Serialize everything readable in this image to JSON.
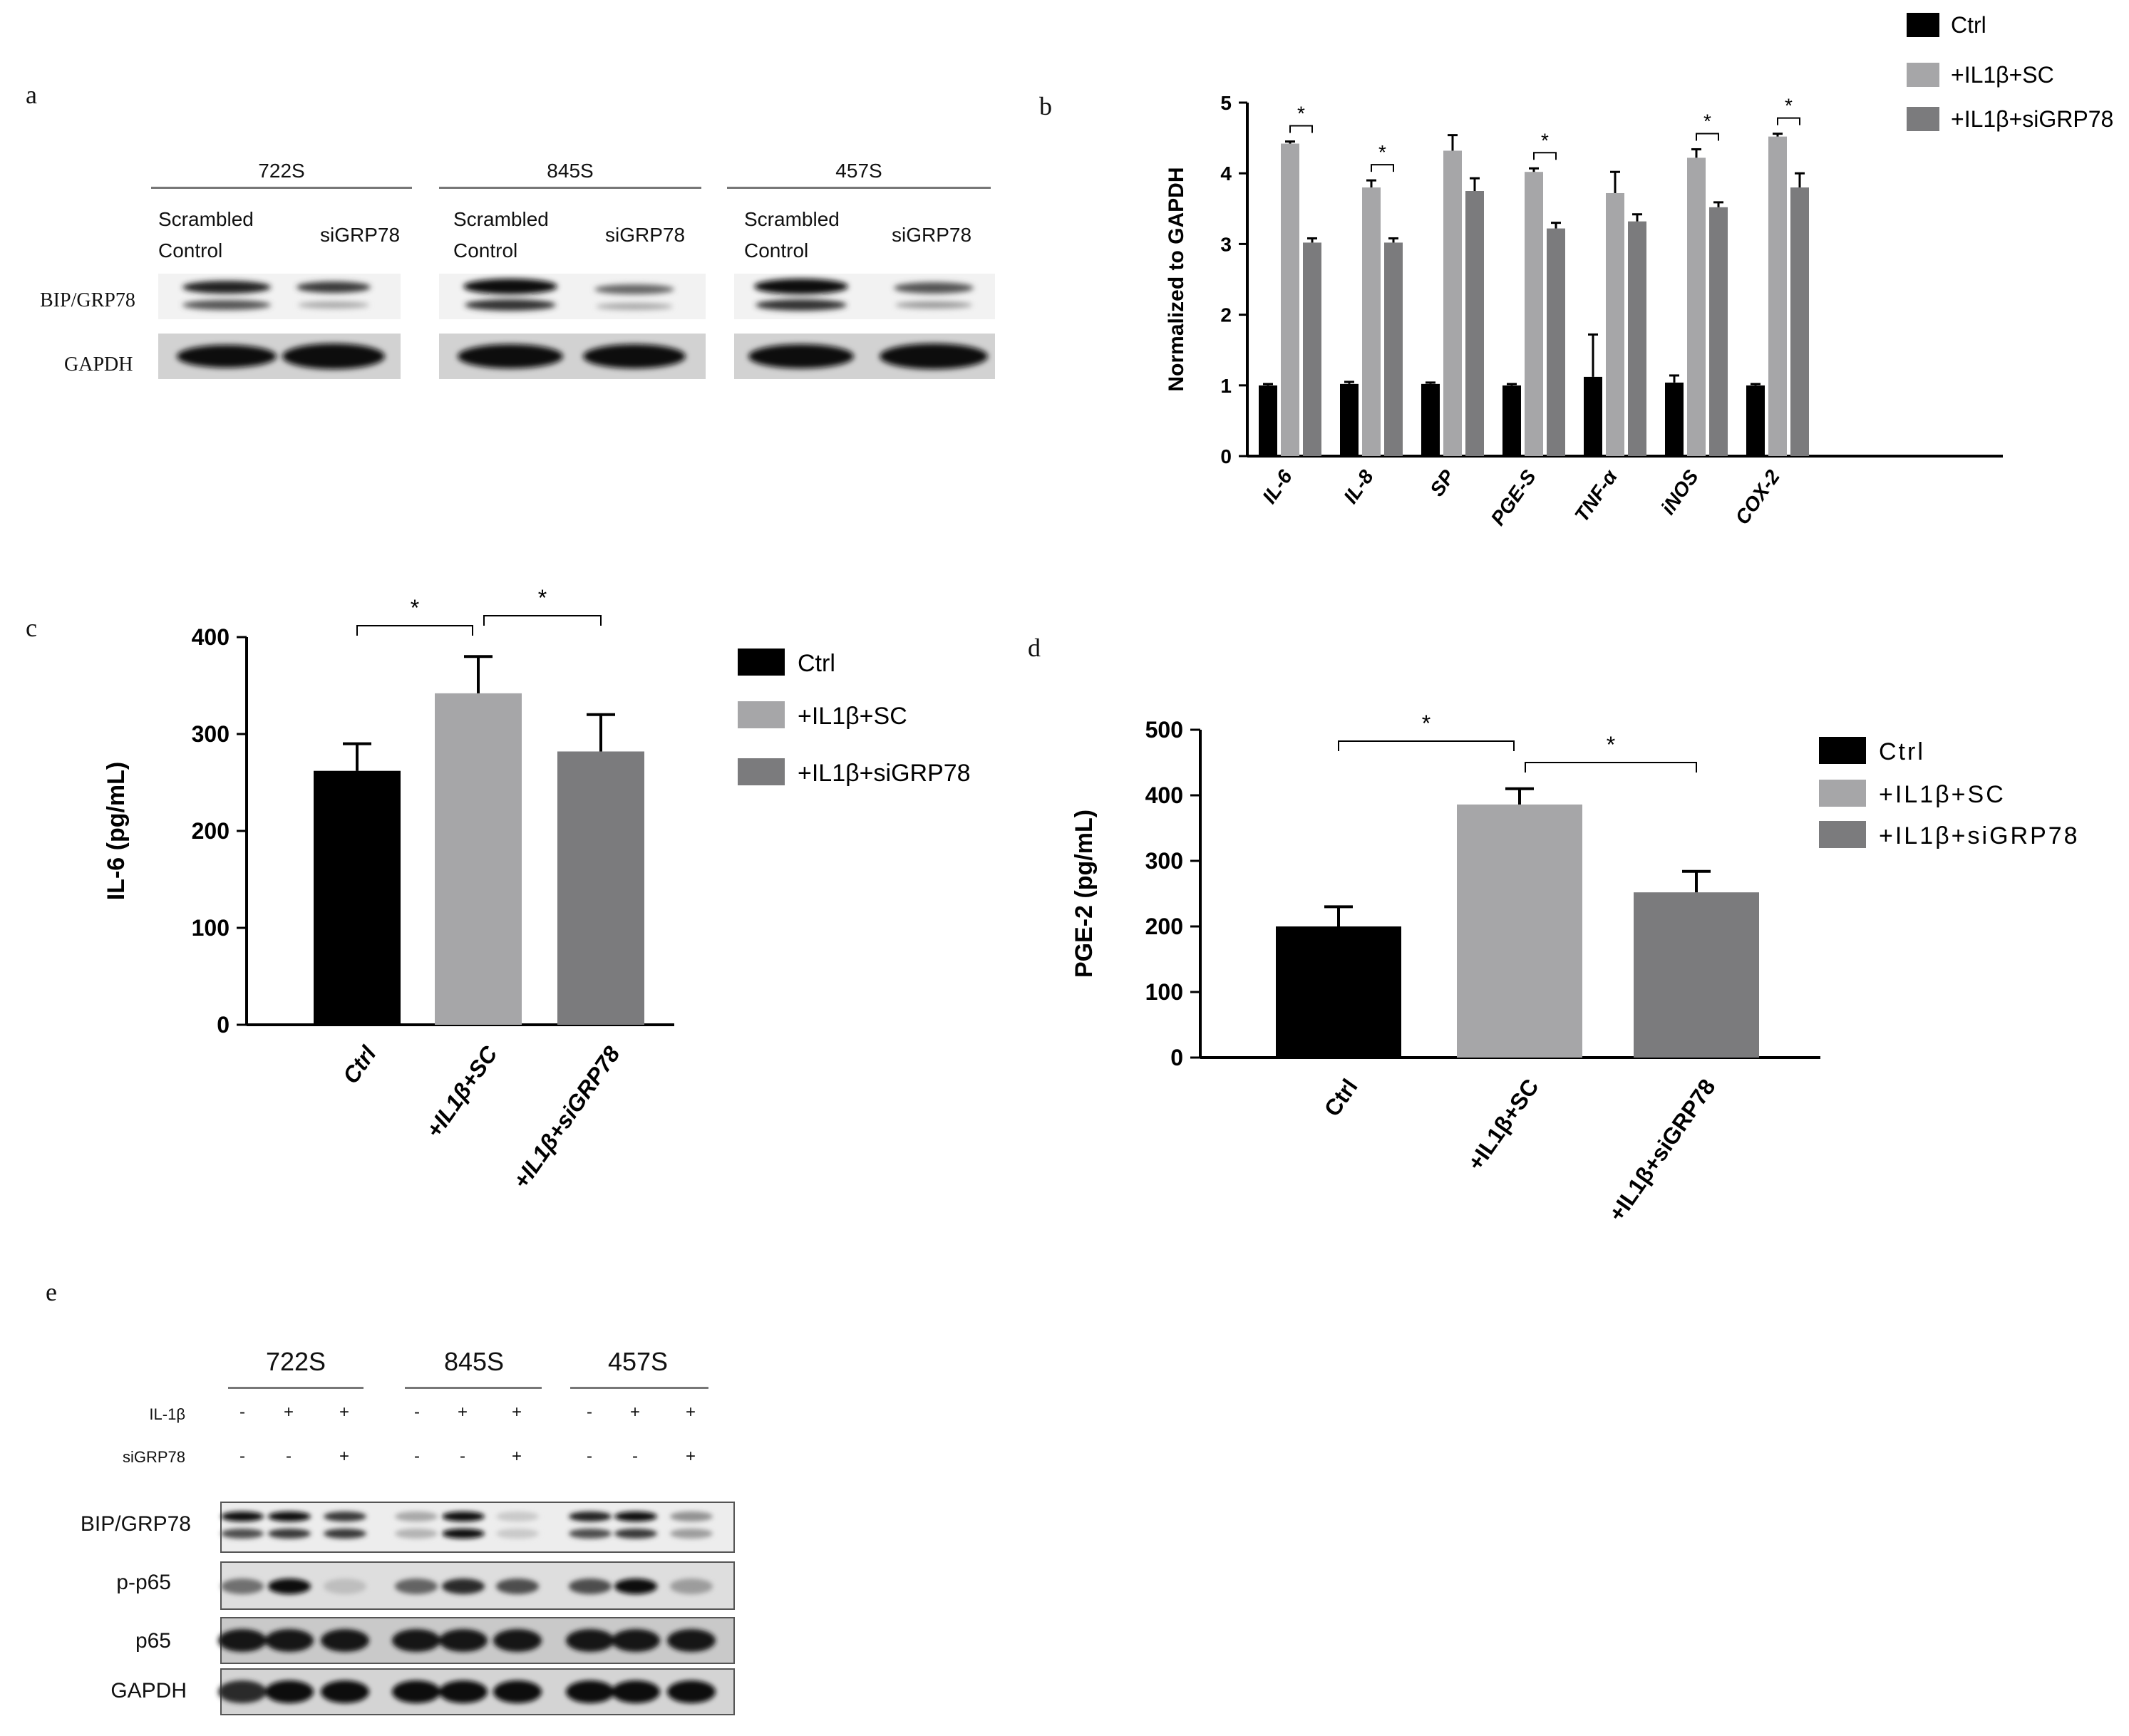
{
  "panel_labels": {
    "a": "a",
    "b": "b",
    "c": "c",
    "d": "d",
    "e": "e"
  },
  "blot_a": {
    "groups": [
      "722S",
      "845S",
      "457S"
    ],
    "conditions": [
      "Scrambled\nControl",
      "siGRP78"
    ],
    "rows": [
      "BIP/GRP78",
      "GAPDH"
    ]
  },
  "blot_e": {
    "groups": [
      "722S",
      "845S",
      "457S"
    ],
    "treatments": [
      {
        "label": "IL-1β",
        "marks": [
          "-",
          "+",
          "+",
          "-",
          "+",
          "+",
          "-",
          "+",
          "+"
        ]
      },
      {
        "label": "siGRP78",
        "marks": [
          "-",
          "-",
          "+",
          "-",
          "-",
          "+",
          "-",
          "-",
          "+"
        ]
      }
    ],
    "rows": [
      "BIP/GRP78",
      "p-p65",
      "p65",
      "GAPDH"
    ]
  },
  "legend_series": [
    "Ctrl",
    "+IL1β+SC",
    "+IL1β+siGRP78"
  ],
  "colors": {
    "ctrl": "#000000",
    "sc": "#a6a6a8",
    "si": "#7b7b7d"
  },
  "chart_data": [
    {
      "id": "b",
      "type": "bar",
      "categories": [
        "IL-6",
        "IL-8",
        "SP",
        "PGE-S",
        "TNF-α",
        "iNOS",
        "COX-2"
      ],
      "series": [
        {
          "name": "Ctrl",
          "values": [
            1.0,
            1.02,
            1.02,
            1.0,
            1.12,
            1.04,
            1.0
          ],
          "errors": [
            0.02,
            0.03,
            0.02,
            0.02,
            0.6,
            0.1,
            0.02
          ]
        },
        {
          "name": "+IL1β+SC",
          "values": [
            4.42,
            3.8,
            4.32,
            4.02,
            3.72,
            4.22,
            4.52
          ],
          "errors": [
            0.03,
            0.1,
            0.22,
            0.05,
            0.3,
            0.12,
            0.04
          ]
        },
        {
          "name": "+IL1β+siGRP78",
          "values": [
            3.02,
            3.02,
            3.75,
            3.22,
            3.32,
            3.52,
            3.8
          ],
          "errors": [
            0.06,
            0.06,
            0.18,
            0.08,
            0.1,
            0.07,
            0.2
          ]
        }
      ],
      "significance": [
        "*",
        "*",
        "",
        "*",
        "",
        "*",
        "*"
      ],
      "ylabel": "Normalized to GAPDH",
      "ylim": [
        0,
        5
      ],
      "yticks": [
        0,
        1,
        2,
        3,
        4,
        5
      ],
      "legend": "top-right"
    },
    {
      "id": "c",
      "type": "bar",
      "categories": [
        "Ctrl",
        "+IL1β+SC",
        "+IL1β+siGRP78"
      ],
      "values": [
        262,
        342,
        282
      ],
      "errors": [
        28,
        38,
        38
      ],
      "ylabel": "IL-6 (pg/mL)",
      "ylim": [
        0,
        400
      ],
      "yticks": [
        0,
        100,
        200,
        300,
        400
      ],
      "brackets": [
        {
          "from": 0,
          "to": 1,
          "label": "*"
        },
        {
          "from": 1,
          "to": 2,
          "label": "*"
        }
      ],
      "legend": "right"
    },
    {
      "id": "d",
      "type": "bar",
      "categories": [
        "Ctrl",
        "+IL1β+SC",
        "+IL1β+siGRP78"
      ],
      "values": [
        200,
        386,
        252
      ],
      "errors": [
        30,
        24,
        32
      ],
      "ylabel": "PGE-2 (pg/mL)",
      "ylim": [
        0,
        500
      ],
      "yticks": [
        0,
        100,
        200,
        300,
        400,
        500
      ],
      "brackets": [
        {
          "from": 0,
          "to": 1,
          "label": "*"
        },
        {
          "from": 1,
          "to": 2,
          "label": "*"
        }
      ],
      "legend": "right"
    }
  ]
}
